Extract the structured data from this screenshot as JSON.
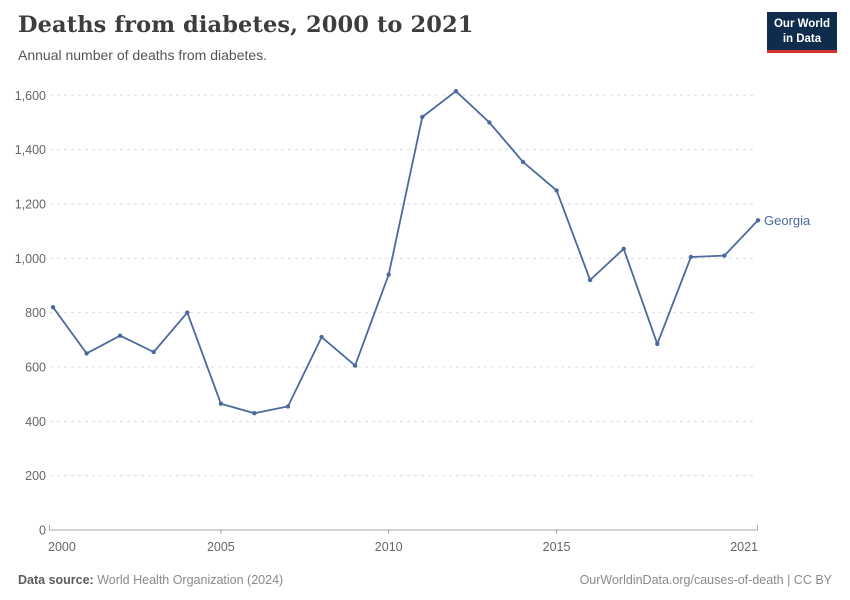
{
  "header": {
    "title": "Deaths from diabetes, 2000 to 2021",
    "subtitle": "Annual number of deaths from diabetes.",
    "logo_line1": "Our World",
    "logo_line2": "in Data"
  },
  "chart_data": {
    "type": "line",
    "title": "Deaths from diabetes, 2000 to 2021",
    "xlabel": "",
    "ylabel": "",
    "x": [
      2000,
      2001,
      2002,
      2003,
      2004,
      2005,
      2006,
      2007,
      2008,
      2009,
      2010,
      2011,
      2012,
      2013,
      2014,
      2015,
      2016,
      2017,
      2018,
      2019,
      2020,
      2021
    ],
    "series": [
      {
        "name": "Georgia",
        "color": "#4C6A9C",
        "values": [
          820,
          650,
          715,
          655,
          800,
          465,
          430,
          455,
          710,
          605,
          940,
          1520,
          1615,
          1500,
          1355,
          1250,
          920,
          1035,
          685,
          1005,
          1010,
          1140
        ]
      }
    ],
    "xlim": [
      2000,
      2021
    ],
    "ylim": [
      0,
      1600
    ],
    "y_ticks": [
      0,
      200,
      400,
      600,
      800,
      1000,
      1200,
      1400,
      1600
    ],
    "y_tick_labels": [
      "0",
      "200",
      "400",
      "600",
      "800",
      "1,000",
      "1,200",
      "1,400",
      "1,600"
    ],
    "x_ticks": [
      2000,
      2005,
      2010,
      2015,
      2021
    ],
    "x_tick_labels": [
      "2000",
      "2005",
      "2010",
      "2015",
      "2021"
    ],
    "grid": "horizontal-dashed",
    "legend": "end-of-line-label"
  },
  "footer": {
    "data_source_label": "Data source:",
    "data_source_value": "World Health Organization (2024)",
    "attribution": "OurWorldinData.org/causes-of-death | CC BY"
  },
  "colors": {
    "line": "#4C6A9C",
    "grid": "#dddddd",
    "axis": "#a6a6a6",
    "tick_text": "#666666",
    "title": "#3d3d3d",
    "subtitle": "#555555",
    "footer_text": "#8a8a8a",
    "logo_bg": "#0f2c4d",
    "logo_accent": "#d0342c"
  }
}
